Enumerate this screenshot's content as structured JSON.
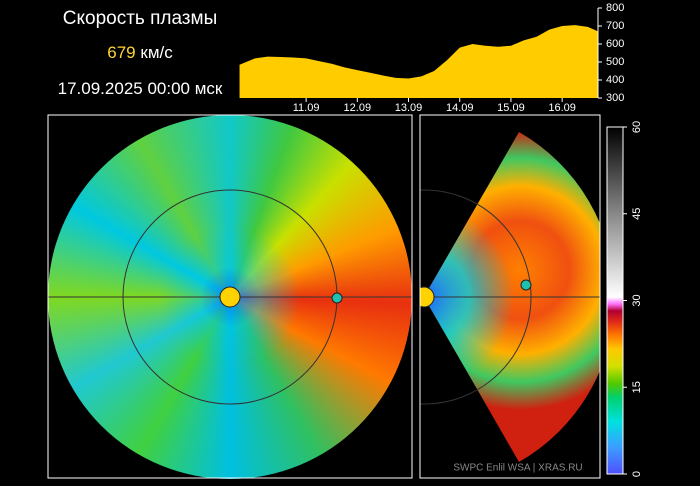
{
  "title": "Скорость плазмы",
  "speed": {
    "value": 679,
    "unit": "км/с"
  },
  "timestamp": "17.09.2025 00:00 мск",
  "credit": "SWPC Enlil WSA  |  XRAS.RU",
  "chart_data": [
    {
      "type": "area",
      "color": "#ffcc00",
      "x": [
        9.7,
        10.0,
        10.25,
        10.5,
        10.75,
        11.0,
        11.25,
        11.5,
        11.75,
        12.0,
        12.25,
        12.5,
        12.75,
        13.0,
        13.25,
        13.5,
        13.75,
        14.0,
        14.25,
        14.5,
        14.75,
        15.0,
        15.25,
        15.5,
        15.75,
        16.0,
        16.25,
        16.5,
        16.7
      ],
      "values": [
        485,
        520,
        530,
        528,
        525,
        520,
        505,
        490,
        470,
        455,
        440,
        425,
        412,
        408,
        420,
        450,
        510,
        580,
        600,
        590,
        585,
        590,
        620,
        640,
        680,
        700,
        705,
        695,
        670
      ],
      "xlim": [
        9.67,
        16.7
      ],
      "xticks": [
        {
          "value": 11,
          "label": "11.09"
        },
        {
          "value": 12,
          "label": "12.09"
        },
        {
          "value": 13,
          "label": "13.09"
        },
        {
          "value": 14,
          "label": "14.09"
        },
        {
          "value": 15,
          "label": "15.09"
        },
        {
          "value": 16,
          "label": "16.09"
        }
      ],
      "ylim": [
        300,
        800
      ],
      "yticks": [
        300,
        400,
        500,
        600,
        700,
        800
      ]
    },
    {
      "type": "colorbar",
      "ylim": [
        0,
        60
      ],
      "yticks": [
        0,
        15,
        30,
        45,
        60
      ]
    }
  ]
}
